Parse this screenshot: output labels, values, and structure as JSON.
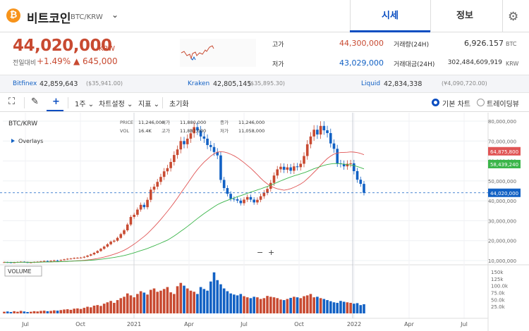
{
  "header": {
    "coin_icon": "bitcoin-icon",
    "coin_icon_glyph": "₿",
    "coin_name": "비트코인",
    "pair": "BTC/KRW",
    "tabs": [
      {
        "label": "시세",
        "active": true
      },
      {
        "label": "정보",
        "active": false
      }
    ],
    "gear_icon": "gear-icon",
    "accent": "#0b4ec1"
  },
  "summary": {
    "price": "44,020,000",
    "currency": "KRW",
    "change_label": "전일대비",
    "change_pct": "+1.49%",
    "change_abs": "▲ 645,000",
    "high_label": "고가",
    "high": "44,300,000",
    "low_label": "저가",
    "low": "43,029,000",
    "volume_label": "거래량(24H)",
    "volume": "6,926.157",
    "volume_unit": "BTC",
    "value_label": "거래대금(24H)",
    "value": "302,484,609,919",
    "value_unit": "KRW",
    "up_color": "#c84a31",
    "down_color": "#1261c4"
  },
  "exchanges": [
    {
      "name": "Bitfinex",
      "price": "42,859,643",
      "krw": "($35,941.00)"
    },
    {
      "name": "Kraken",
      "price": "42,805,145",
      "krw": "($35,895.30)"
    },
    {
      "name": "Liquid",
      "price": "42,834,338",
      "krw": "(¥4,090,720.00)"
    }
  ],
  "toolbar": {
    "period": "1주",
    "chart_settings": "차트설정",
    "indicators": "지표",
    "reset": "초기화",
    "basic_chart": "기본 차트",
    "tradingview": "트레이딩뷰"
  },
  "chart_data": {
    "type": "candlestick",
    "symbol": "BTC/KRW",
    "overlays_label": "Overlays",
    "ohlc_labels": {
      "price": "PRICE",
      "open": "시가",
      "change": "증가",
      "vol": "VOL",
      "high": "고가",
      "low": "저가"
    },
    "ohlc_values": {
      "price": "11,246,000",
      "open": "11,880,000",
      "change": "11,246,000",
      "vol": "16.4K",
      "high": "11,887,000",
      "low": "11,058,000"
    },
    "y_ticks": [
      "80,000,000",
      "70,000,000",
      "60,000,000",
      "50,000,000",
      "40,000,000",
      "30,000,000",
      "20,000,000",
      "10,000,000"
    ],
    "y_values": [
      80000000,
      70000000,
      60000000,
      50000000,
      40000000,
      30000000,
      20000000,
      10000000
    ],
    "price_tags": [
      {
        "label": "64,875,800",
        "value": 64875800,
        "color": "#e05555"
      },
      {
        "label": "58,439,240",
        "value": 58439240,
        "color": "#3bb54a"
      },
      {
        "label": "44,020,000",
        "value": 44020000,
        "color": "#1261c4"
      }
    ],
    "x_ticks": [
      "Jul",
      "Oct",
      "2021",
      "Apr",
      "Jul",
      "Oct",
      "2022",
      "Apr",
      "Jul"
    ],
    "volume_label": "VOLUME",
    "volume_ticks": [
      "150k",
      "125k",
      "100.0k",
      "75.0k",
      "50.0k",
      "25.0k"
    ],
    "closes_millions": [
      9.2,
      9.1,
      9.0,
      9.1,
      9.3,
      9.4,
      9.2,
      9.0,
      9.1,
      9.3,
      9.4,
      9.6,
      9.8,
      9.7,
      9.9,
      10.1,
      10.0,
      10.3,
      10.6,
      10.9,
      11.0,
      11.3,
      11.4,
      11.5,
      11.9,
      12.5,
      13.1,
      13.9,
      14.8,
      15.9,
      17.0,
      18.2,
      19.5,
      20.0,
      21.4,
      23.3,
      25.2,
      28.1,
      31.9,
      33.0,
      35.6,
      38.0,
      36.8,
      40.5,
      45.6,
      47.1,
      49.5,
      52.0,
      54.8,
      56.4,
      59.5,
      63.0,
      65.8,
      70.0,
      68.4,
      71.2,
      73.9,
      77.0,
      75.3,
      72.3,
      71.2,
      68.0,
      67.0,
      64.5,
      62.8,
      50.5,
      46.4,
      43.5,
      41.0,
      40.8,
      40.1,
      38.8,
      40.6,
      41.9,
      40.6,
      39.2,
      40.5,
      42.3,
      44.1,
      46.0,
      49.0,
      52.7,
      55.8,
      57.1,
      55.6,
      56.8,
      55.1,
      57.3,
      56.9,
      58.6,
      62.5,
      68.4,
      72.3,
      75.7,
      73.3,
      77.6,
      75.4,
      74.0,
      68.8,
      66.1,
      58.8,
      58.5,
      57.3,
      58.6,
      58.8,
      54.9,
      50.6,
      48.5,
      44.0
    ],
    "volumes_k": [
      6,
      7,
      5,
      8,
      6,
      9,
      7,
      5,
      6,
      8,
      7,
      9,
      10,
      8,
      9,
      11,
      10,
      12,
      14,
      15,
      13,
      17,
      18,
      16,
      20,
      24,
      22,
      28,
      30,
      27,
      35,
      40,
      45,
      38,
      48,
      55,
      60,
      72,
      65,
      58,
      70,
      80,
      75,
      68,
      85,
      90,
      78,
      82,
      88,
      95,
      76,
      70,
      98,
      110,
      100,
      90,
      82,
      78,
      70,
      95,
      88,
      82,
      115,
      148,
      120,
      105,
      90,
      80,
      72,
      68,
      65,
      70,
      62,
      58,
      55,
      60,
      58,
      52,
      55,
      63,
      60,
      58,
      55,
      50,
      48,
      52,
      56,
      60,
      58,
      55,
      62,
      65,
      70,
      58,
      60,
      55,
      52,
      48,
      44,
      40,
      38,
      45,
      42,
      40,
      38,
      35,
      37,
      30,
      33
    ]
  }
}
